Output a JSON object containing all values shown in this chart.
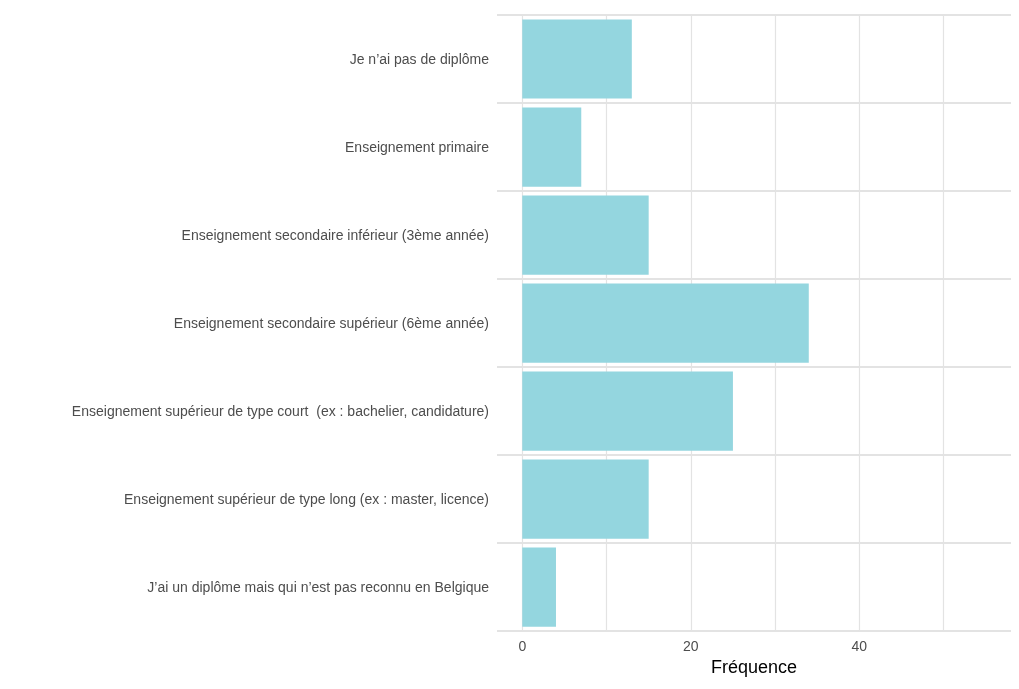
{
  "chart_data": {
    "type": "bar",
    "orientation": "horizontal",
    "xlabel": "Fréquence",
    "categories": [
      "Je n’ai pas de diplôme",
      "Enseignement primaire",
      "Enseignement secondaire inférieur (3ème année)",
      "Enseignement secondaire supérieur (6ème année)",
      "Enseignement supérieur de type court  (ex : bachelier, candidature)",
      "Enseignement supérieur de type long (ex : master, licence)",
      "J’ai un diplôme mais qui n’est pas reconnu en Belgique"
    ],
    "values": [
      13,
      7,
      15,
      34,
      25,
      15,
      4
    ],
    "color": "#94d6df",
    "xlim": [
      -3,
      58
    ],
    "xticks": [
      0,
      {
        "value": 10,
        "label": null
      },
      20,
      {
        "value": 30,
        "label": null
      },
      40,
      {
        "value": 50,
        "label": null
      }
    ],
    "grid": true
  }
}
